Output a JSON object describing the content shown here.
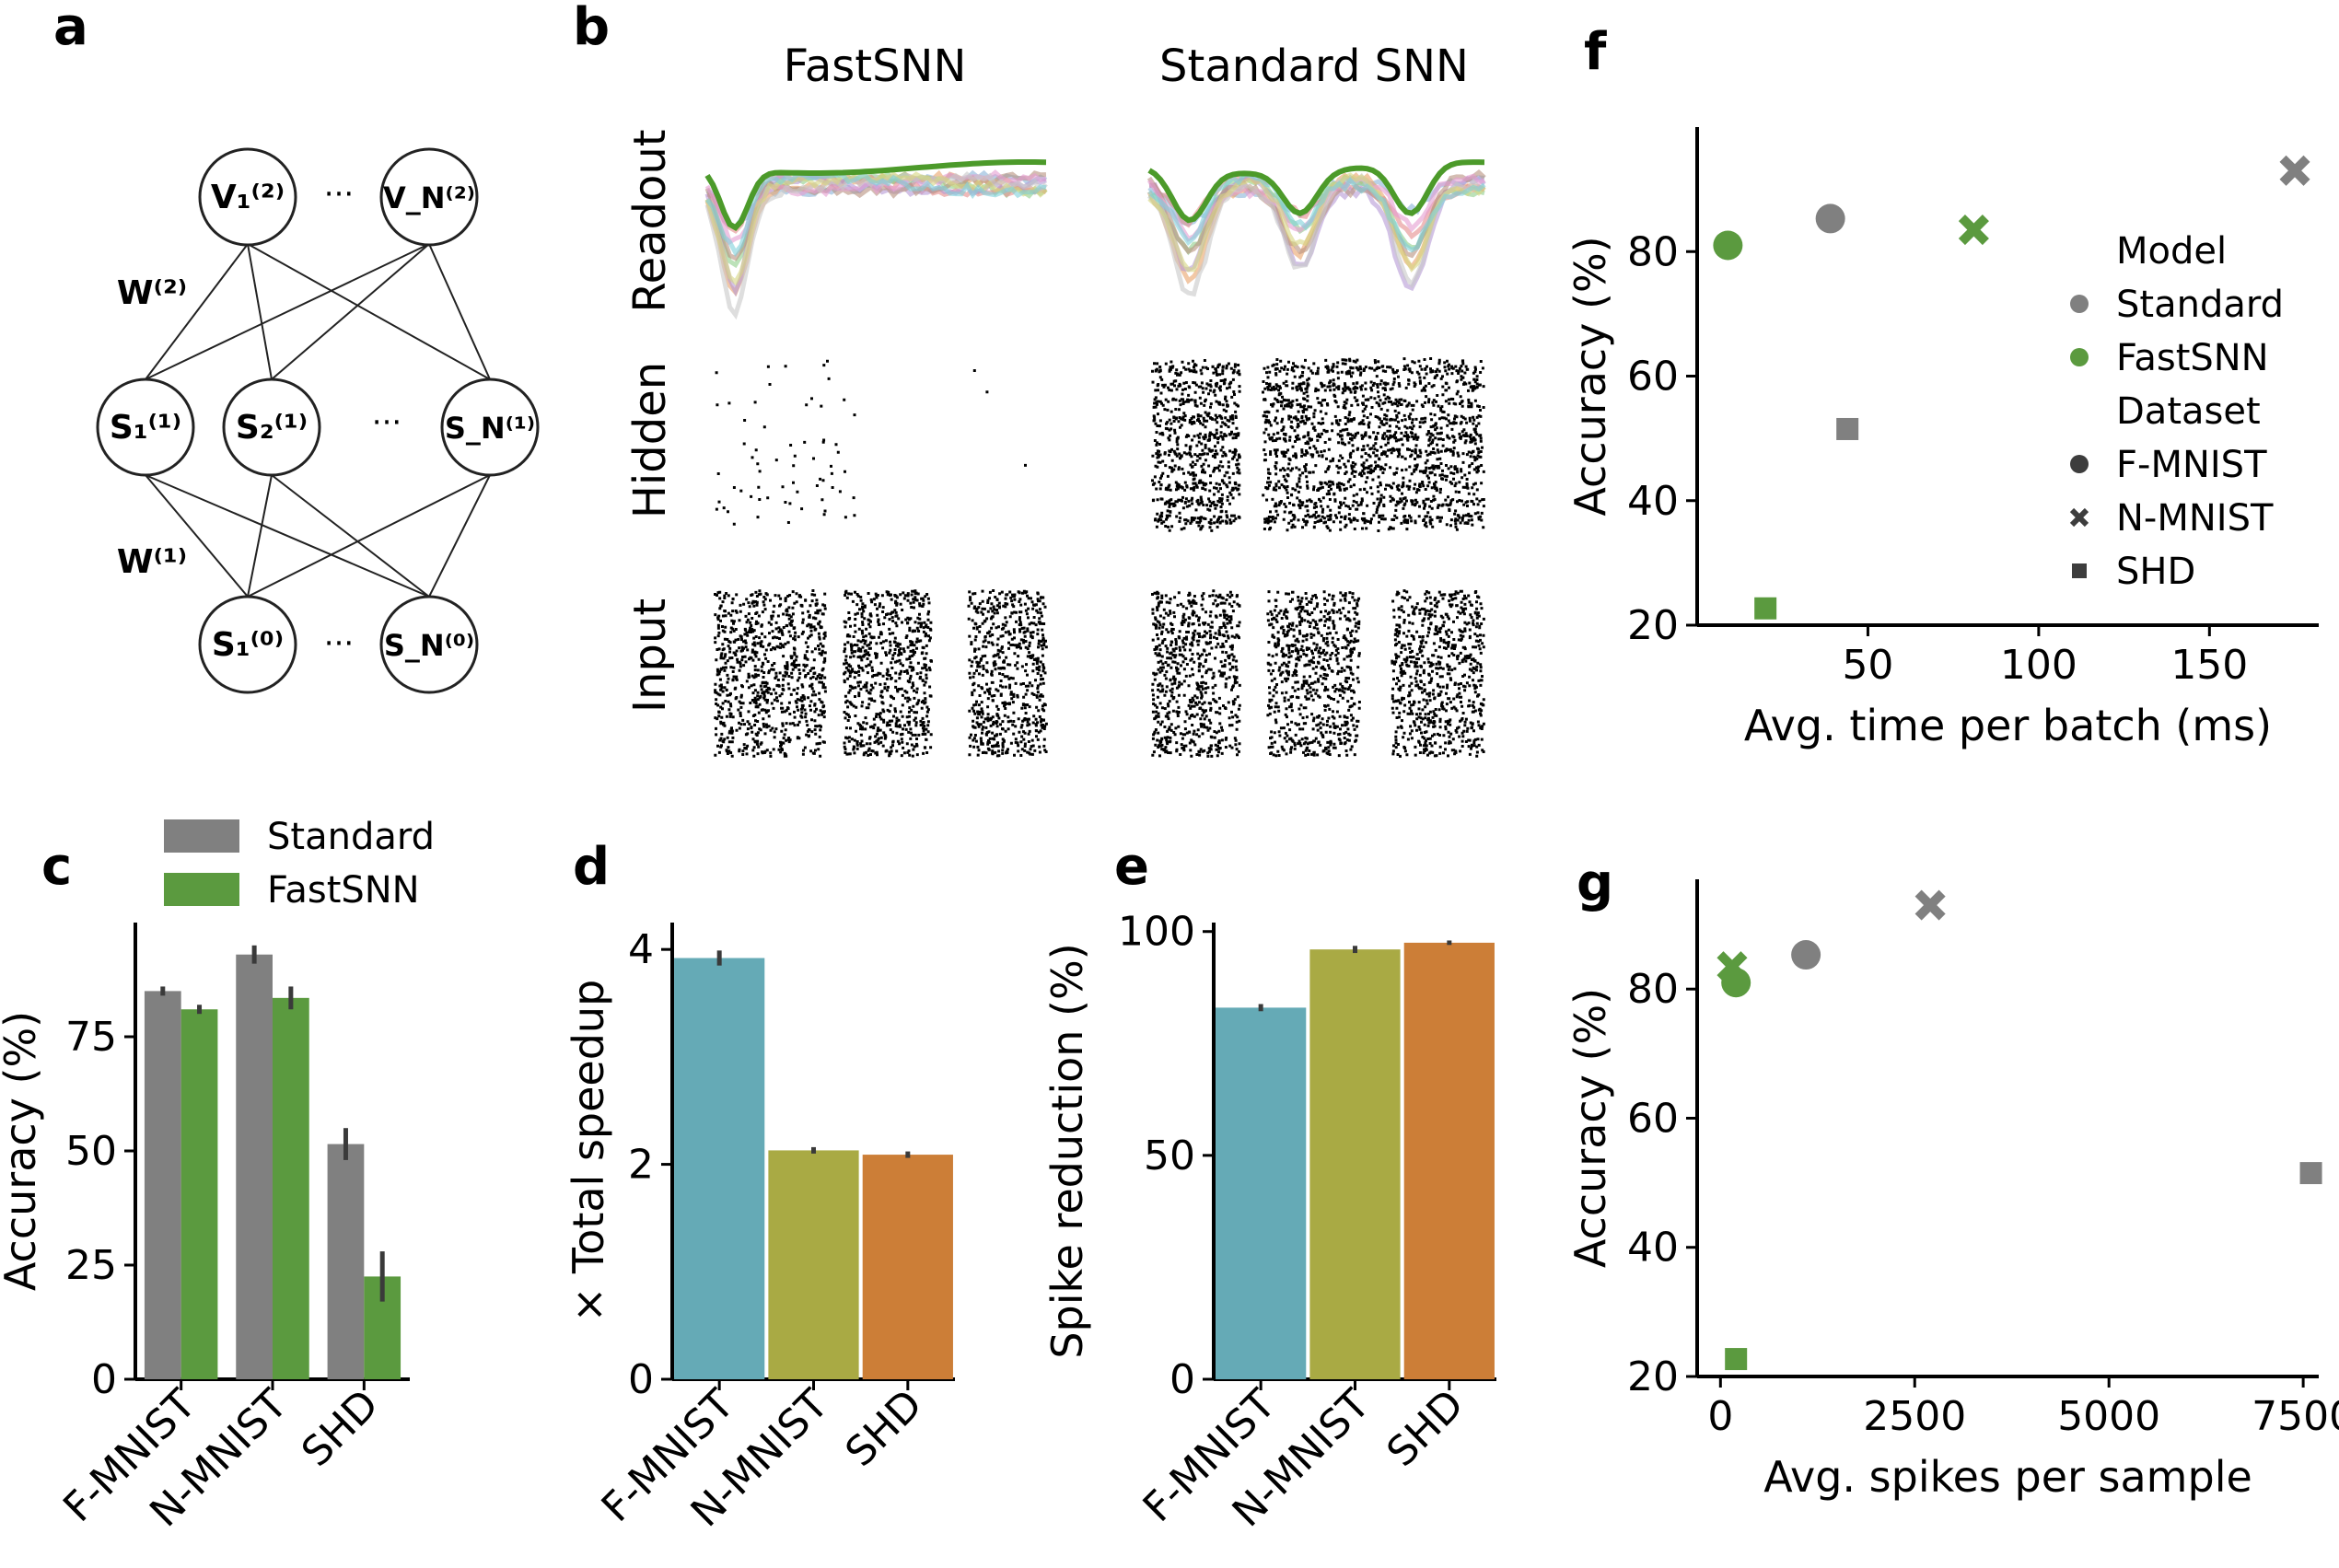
{
  "panel_letters": [
    "a",
    "b",
    "c",
    "d",
    "e",
    "f",
    "g"
  ],
  "network": {
    "top_nodes": [
      "V₁⁽²⁾",
      "V_N⁽²⁾"
    ],
    "mid_nodes": [
      "S₁⁽¹⁾",
      "S₂⁽¹⁾",
      "S_N⁽¹⁾"
    ],
    "bot_nodes": [
      "S₁⁽⁰⁾",
      "S_N⁽⁰⁾"
    ],
    "ellipsis": "···",
    "w2": "W⁽²⁾",
    "w1": "W⁽¹⁾"
  },
  "raster": {
    "titles": [
      "FastSNN",
      "Standard SNN"
    ],
    "row_labels": [
      "Readout",
      "Hidden",
      "Input"
    ]
  },
  "chart_data": [
    {
      "panel": "c",
      "type": "bar",
      "categories": [
        "F-MNIST",
        "N-MNIST",
        "SHD"
      ],
      "series": [
        {
          "name": "Standard",
          "values": [
            85,
            93,
            51.5
          ],
          "err": [
            1,
            2,
            3.5
          ],
          "color": "#808080"
        },
        {
          "name": "FastSNN",
          "values": [
            81,
            83.5,
            22.5
          ],
          "err": [
            1,
            2.5,
            5.5
          ],
          "color": "#5b9a3f"
        }
      ],
      "ylabel": "Accuracy (%)",
      "ylim": [
        0,
        100
      ],
      "yticks": [
        0,
        25,
        50,
        75
      ],
      "legend": "top"
    },
    {
      "panel": "d",
      "type": "bar",
      "categories": [
        "F-MNIST",
        "N-MNIST",
        "SHD"
      ],
      "values": [
        3.92,
        2.13,
        2.09
      ],
      "err": [
        0.07,
        0.03,
        0.03
      ],
      "colors": [
        "#65aab6",
        "#a9aa44",
        "#cc7e37"
      ],
      "ylabel": "× Total speedup",
      "ylim": [
        0,
        4.25
      ],
      "yticks": [
        0,
        2,
        4
      ]
    },
    {
      "panel": "e",
      "type": "bar",
      "categories": [
        "F-MNIST",
        "N-MNIST",
        "SHD"
      ],
      "values": [
        83,
        96,
        97.5
      ],
      "err": [
        0.8,
        0.8,
        0.5
      ],
      "colors": [
        "#65aab6",
        "#a9aa44",
        "#cc7e37"
      ],
      "ylabel": "Spike reduction (%)",
      "ylim": [
        0,
        102
      ],
      "yticks": [
        0,
        50,
        100
      ]
    },
    {
      "panel": "f",
      "type": "scatter",
      "xlabel": "Avg. time per batch (ms)",
      "ylabel": "Accuracy (%)",
      "xlim": [
        0,
        182
      ],
      "ylim": [
        20,
        100
      ],
      "xticks": [
        50,
        100,
        150
      ],
      "yticks": [
        20,
        40,
        60,
        80
      ],
      "points": [
        {
          "model": "Standard",
          "dataset": "F-MNIST",
          "x": 39,
          "y": 85.3
        },
        {
          "model": "FastSNN",
          "dataset": "F-MNIST",
          "x": 9,
          "y": 81
        },
        {
          "model": "Standard",
          "dataset": "N-MNIST",
          "x": 175,
          "y": 93
        },
        {
          "model": "FastSNN",
          "dataset": "N-MNIST",
          "x": 81,
          "y": 83.5
        },
        {
          "model": "Standard",
          "dataset": "SHD",
          "x": 44,
          "y": 51.5
        },
        {
          "model": "FastSNN",
          "dataset": "SHD",
          "x": 20,
          "y": 22.7
        }
      ],
      "legend": {
        "model_title": "Model",
        "models": [
          "Standard",
          "FastSNN"
        ],
        "dataset_title": "Dataset",
        "datasets": [
          "F-MNIST",
          "N-MNIST",
          "SHD"
        ]
      }
    },
    {
      "panel": "g",
      "type": "scatter",
      "xlabel": "Avg. spikes per sample",
      "ylabel": "Accuracy (%)",
      "xlim": [
        -300,
        7700
      ],
      "ylim": [
        20,
        97
      ],
      "xticks": [
        0,
        2500,
        5000,
        7500
      ],
      "yticks": [
        20,
        40,
        60,
        80
      ],
      "points": [
        {
          "model": "Standard",
          "dataset": "F-MNIST",
          "x": 1100,
          "y": 85.3
        },
        {
          "model": "FastSNN",
          "dataset": "F-MNIST",
          "x": 200,
          "y": 81
        },
        {
          "model": "Standard",
          "dataset": "N-MNIST",
          "x": 2700,
          "y": 93
        },
        {
          "model": "FastSNN",
          "dataset": "N-MNIST",
          "x": 150,
          "y": 83.5
        },
        {
          "model": "Standard",
          "dataset": "SHD",
          "x": 7600,
          "y": 51.5
        },
        {
          "model": "FastSNN",
          "dataset": "SHD",
          "x": 200,
          "y": 22.7
        }
      ]
    }
  ],
  "colors": {
    "standard": "#808080",
    "fastsnn": "#5b9a3f"
  }
}
